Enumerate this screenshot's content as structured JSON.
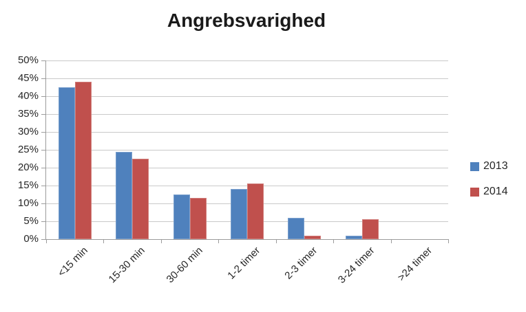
{
  "title": "Angrebsvarighed",
  "chart_data": {
    "type": "bar",
    "title": "Angrebsvarighed",
    "categories": [
      "<15 min",
      "15-30 min",
      "30-60 min",
      "1-2 timer",
      "2-3 timer",
      "3-24 timer",
      ">24 timer"
    ],
    "series": [
      {
        "name": "2013",
        "color": "#4F81BD",
        "values": [
          42.5,
          24.5,
          12.5,
          14,
          6,
          1,
          0
        ]
      },
      {
        "name": "2014",
        "color": "#C0504D",
        "values": [
          44,
          22.5,
          11.5,
          15.5,
          1,
          5.5,
          0
        ]
      }
    ],
    "xlabel": "",
    "ylabel": "",
    "y_axis": {
      "min": 0,
      "max": 50,
      "step": 5,
      "unit": "%",
      "tick_labels": [
        "0%",
        "5%",
        "10%",
        "15%",
        "20%",
        "25%",
        "30%",
        "35%",
        "40%",
        "45%",
        "50%"
      ]
    },
    "grid": true,
    "legend": {
      "position": "right",
      "entries": [
        "2013",
        "2014"
      ]
    },
    "colors": {
      "series_2013": "#4F81BD",
      "series_2014": "#C0504D",
      "gridline": "#C9C9C9",
      "axis": "#9B9B9B",
      "text": "#262626",
      "title_text": "#1A1A1A",
      "background": "#FFFFFF"
    }
  }
}
